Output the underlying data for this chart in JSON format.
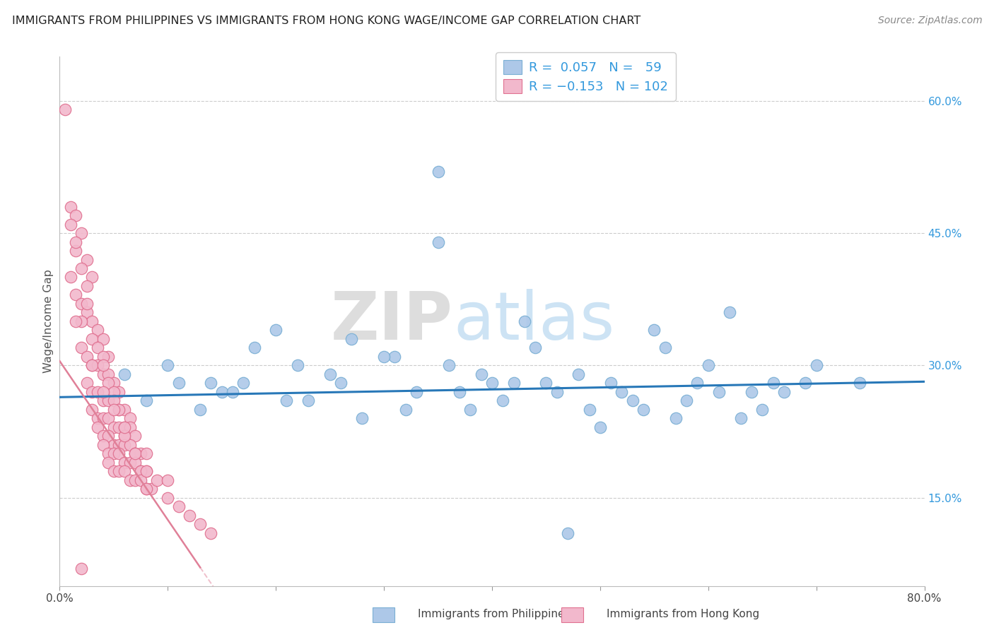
{
  "title": "IMMIGRANTS FROM PHILIPPINES VS IMMIGRANTS FROM HONG KONG WAGE/INCOME GAP CORRELATION CHART",
  "source": "Source: ZipAtlas.com",
  "ylabel": "Wage/Income Gap",
  "xmin": 0.0,
  "xmax": 0.8,
  "ymin": 0.05,
  "ymax": 0.65,
  "ytick_vals": [
    0.15,
    0.3,
    0.45,
    0.6
  ],
  "ytick_labels": [
    "15.0%",
    "30.0%",
    "45.0%",
    "60.0%"
  ],
  "philippines_color": "#adc8e8",
  "philippines_edge": "#7aafd4",
  "hongkong_color": "#f2b8cc",
  "hongkong_edge": "#e07090",
  "trend_philippines_color": "#2878b8",
  "trend_hongkong_color": "#e08098",
  "R_philippines": 0.057,
  "N_philippines": 59,
  "R_hongkong": -0.153,
  "N_hongkong": 102,
  "legend_label_philippines": "Immigrants from Philippines",
  "legend_label_hongkong": "Immigrants from Hong Kong",
  "watermark_zip": "ZIP",
  "watermark_atlas": "atlas",
  "ph_x": [
    0.06,
    0.1,
    0.14,
    0.18,
    0.22,
    0.27,
    0.31,
    0.36,
    0.4,
    0.44,
    0.48,
    0.52,
    0.55,
    0.59,
    0.62,
    0.66,
    0.7,
    0.74,
    0.15,
    0.2,
    0.25,
    0.3,
    0.35,
    0.39,
    0.43,
    0.47,
    0.51,
    0.56,
    0.6,
    0.64,
    0.08,
    0.13,
    0.17,
    0.23,
    0.28,
    0.33,
    0.38,
    0.42,
    0.46,
    0.5,
    0.54,
    0.58,
    0.63,
    0.67,
    0.11,
    0.16,
    0.21,
    0.26,
    0.32,
    0.37,
    0.41,
    0.45,
    0.49,
    0.53,
    0.57,
    0.61,
    0.65,
    0.69,
    0.35
  ],
  "ph_y": [
    0.29,
    0.3,
    0.28,
    0.32,
    0.3,
    0.33,
    0.31,
    0.3,
    0.28,
    0.32,
    0.29,
    0.27,
    0.34,
    0.28,
    0.36,
    0.28,
    0.3,
    0.28,
    0.27,
    0.34,
    0.29,
    0.31,
    0.52,
    0.29,
    0.35,
    0.11,
    0.28,
    0.32,
    0.3,
    0.27,
    0.26,
    0.25,
    0.28,
    0.26,
    0.24,
    0.27,
    0.25,
    0.28,
    0.27,
    0.23,
    0.25,
    0.26,
    0.24,
    0.27,
    0.28,
    0.27,
    0.26,
    0.28,
    0.25,
    0.27,
    0.26,
    0.28,
    0.25,
    0.26,
    0.24,
    0.27,
    0.25,
    0.28,
    0.44
  ],
  "hk_x": [
    0.005,
    0.01,
    0.015,
    0.01,
    0.02,
    0.015,
    0.025,
    0.02,
    0.03,
    0.025,
    0.015,
    0.02,
    0.025,
    0.03,
    0.035,
    0.03,
    0.04,
    0.035,
    0.045,
    0.04,
    0.02,
    0.025,
    0.03,
    0.035,
    0.04,
    0.045,
    0.05,
    0.045,
    0.055,
    0.05,
    0.025,
    0.03,
    0.035,
    0.04,
    0.045,
    0.05,
    0.055,
    0.06,
    0.055,
    0.065,
    0.03,
    0.035,
    0.04,
    0.045,
    0.05,
    0.055,
    0.06,
    0.065,
    0.06,
    0.07,
    0.035,
    0.04,
    0.045,
    0.05,
    0.055,
    0.06,
    0.065,
    0.07,
    0.075,
    0.07,
    0.04,
    0.045,
    0.05,
    0.055,
    0.06,
    0.065,
    0.07,
    0.075,
    0.08,
    0.075,
    0.045,
    0.05,
    0.055,
    0.06,
    0.065,
    0.07,
    0.075,
    0.08,
    0.085,
    0.08,
    0.01,
    0.02,
    0.03,
    0.04,
    0.05,
    0.06,
    0.07,
    0.08,
    0.09,
    0.1,
    0.11,
    0.12,
    0.13,
    0.14,
    0.015,
    0.025,
    0.015,
    0.06,
    0.08,
    0.1,
    0.02,
    0.04
  ],
  "hk_y": [
    0.59,
    0.48,
    0.47,
    0.46,
    0.45,
    0.43,
    0.42,
    0.41,
    0.4,
    0.39,
    0.38,
    0.37,
    0.36,
    0.35,
    0.34,
    0.33,
    0.33,
    0.32,
    0.31,
    0.31,
    0.32,
    0.31,
    0.3,
    0.3,
    0.29,
    0.29,
    0.28,
    0.28,
    0.27,
    0.27,
    0.28,
    0.27,
    0.27,
    0.26,
    0.26,
    0.26,
    0.25,
    0.25,
    0.25,
    0.24,
    0.25,
    0.24,
    0.24,
    0.24,
    0.23,
    0.23,
    0.23,
    0.23,
    0.22,
    0.22,
    0.23,
    0.22,
    0.22,
    0.21,
    0.21,
    0.21,
    0.21,
    0.2,
    0.2,
    0.2,
    0.21,
    0.2,
    0.2,
    0.2,
    0.19,
    0.19,
    0.19,
    0.18,
    0.18,
    0.18,
    0.19,
    0.18,
    0.18,
    0.18,
    0.17,
    0.17,
    0.17,
    0.16,
    0.16,
    0.16,
    0.4,
    0.35,
    0.3,
    0.27,
    0.25,
    0.22,
    0.2,
    0.18,
    0.17,
    0.15,
    0.14,
    0.13,
    0.12,
    0.11,
    0.44,
    0.37,
    0.35,
    0.23,
    0.2,
    0.17,
    0.07,
    0.3
  ]
}
